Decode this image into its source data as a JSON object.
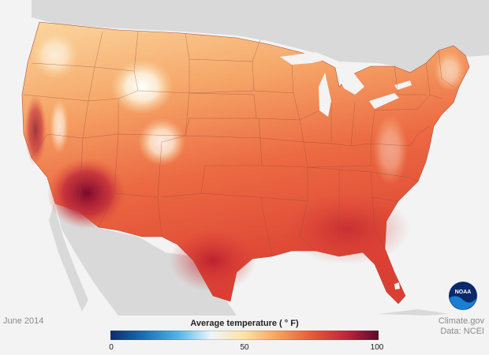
{
  "map": {
    "date_label": "June 2014",
    "credit_line1": "Climate.gov",
    "credit_line2": "Data: NCEI",
    "legend": {
      "title": "Average temperature ( ° F)",
      "ticks": [
        "0",
        "50",
        "100"
      ],
      "min": 0,
      "max": 100,
      "colors": [
        "#0d2c6c",
        "#1a6fb4",
        "#4fb3e6",
        "#eef5fb",
        "#fde2a6",
        "#f6a25a",
        "#e65a3a",
        "#c5263b",
        "#5a0a2c"
      ]
    },
    "logo_text": "NOAA",
    "colors": {
      "background": "#f3f3f3",
      "land_other": "#d9d9d9",
      "state_lines": "#8a4a3a"
    }
  }
}
